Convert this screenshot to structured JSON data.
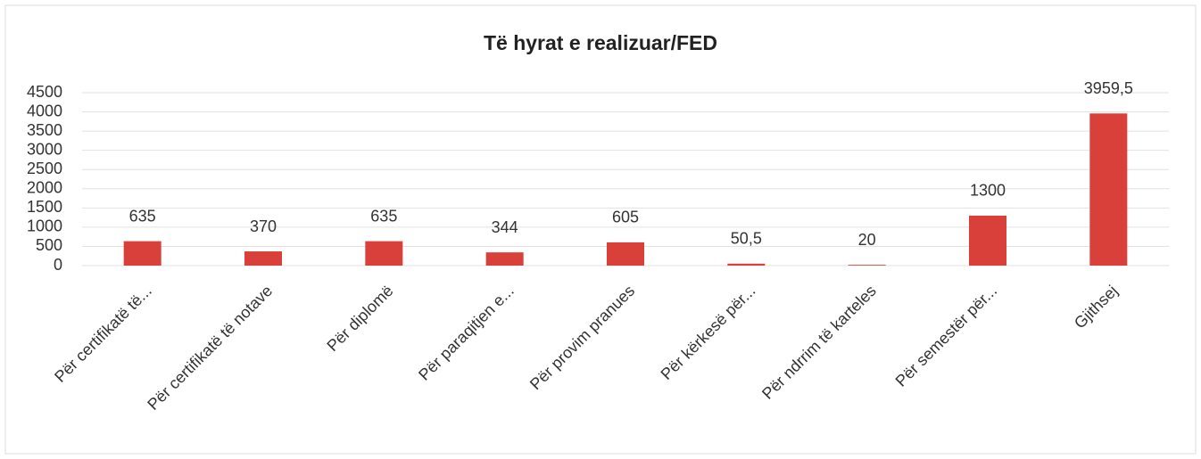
{
  "chart_data": {
    "type": "bar",
    "title": "Të hyrat e realizuar/FED",
    "categories": [
      "Për certifikatë të...",
      "Për certifikatë të notave",
      "Për diplomë",
      "Për paraqitjen e...",
      "Për provim pranues",
      "Për kërkesë për...",
      "Për ndrrim të karteles",
      "Për semestër për...",
      "Gjithsej"
    ],
    "values": [
      635,
      370,
      635,
      344,
      605,
      50.5,
      20,
      1300,
      3959.5
    ],
    "value_labels": [
      "635",
      "370",
      "635",
      "344",
      "605",
      "50,5",
      "20",
      "1300",
      "3959,5"
    ],
    "color": "#d9403a",
    "ylim": [
      0,
      4500
    ],
    "yticks": [
      0,
      500,
      1000,
      1500,
      2000,
      2500,
      3000,
      3500,
      4000,
      4500
    ],
    "grid": true
  }
}
